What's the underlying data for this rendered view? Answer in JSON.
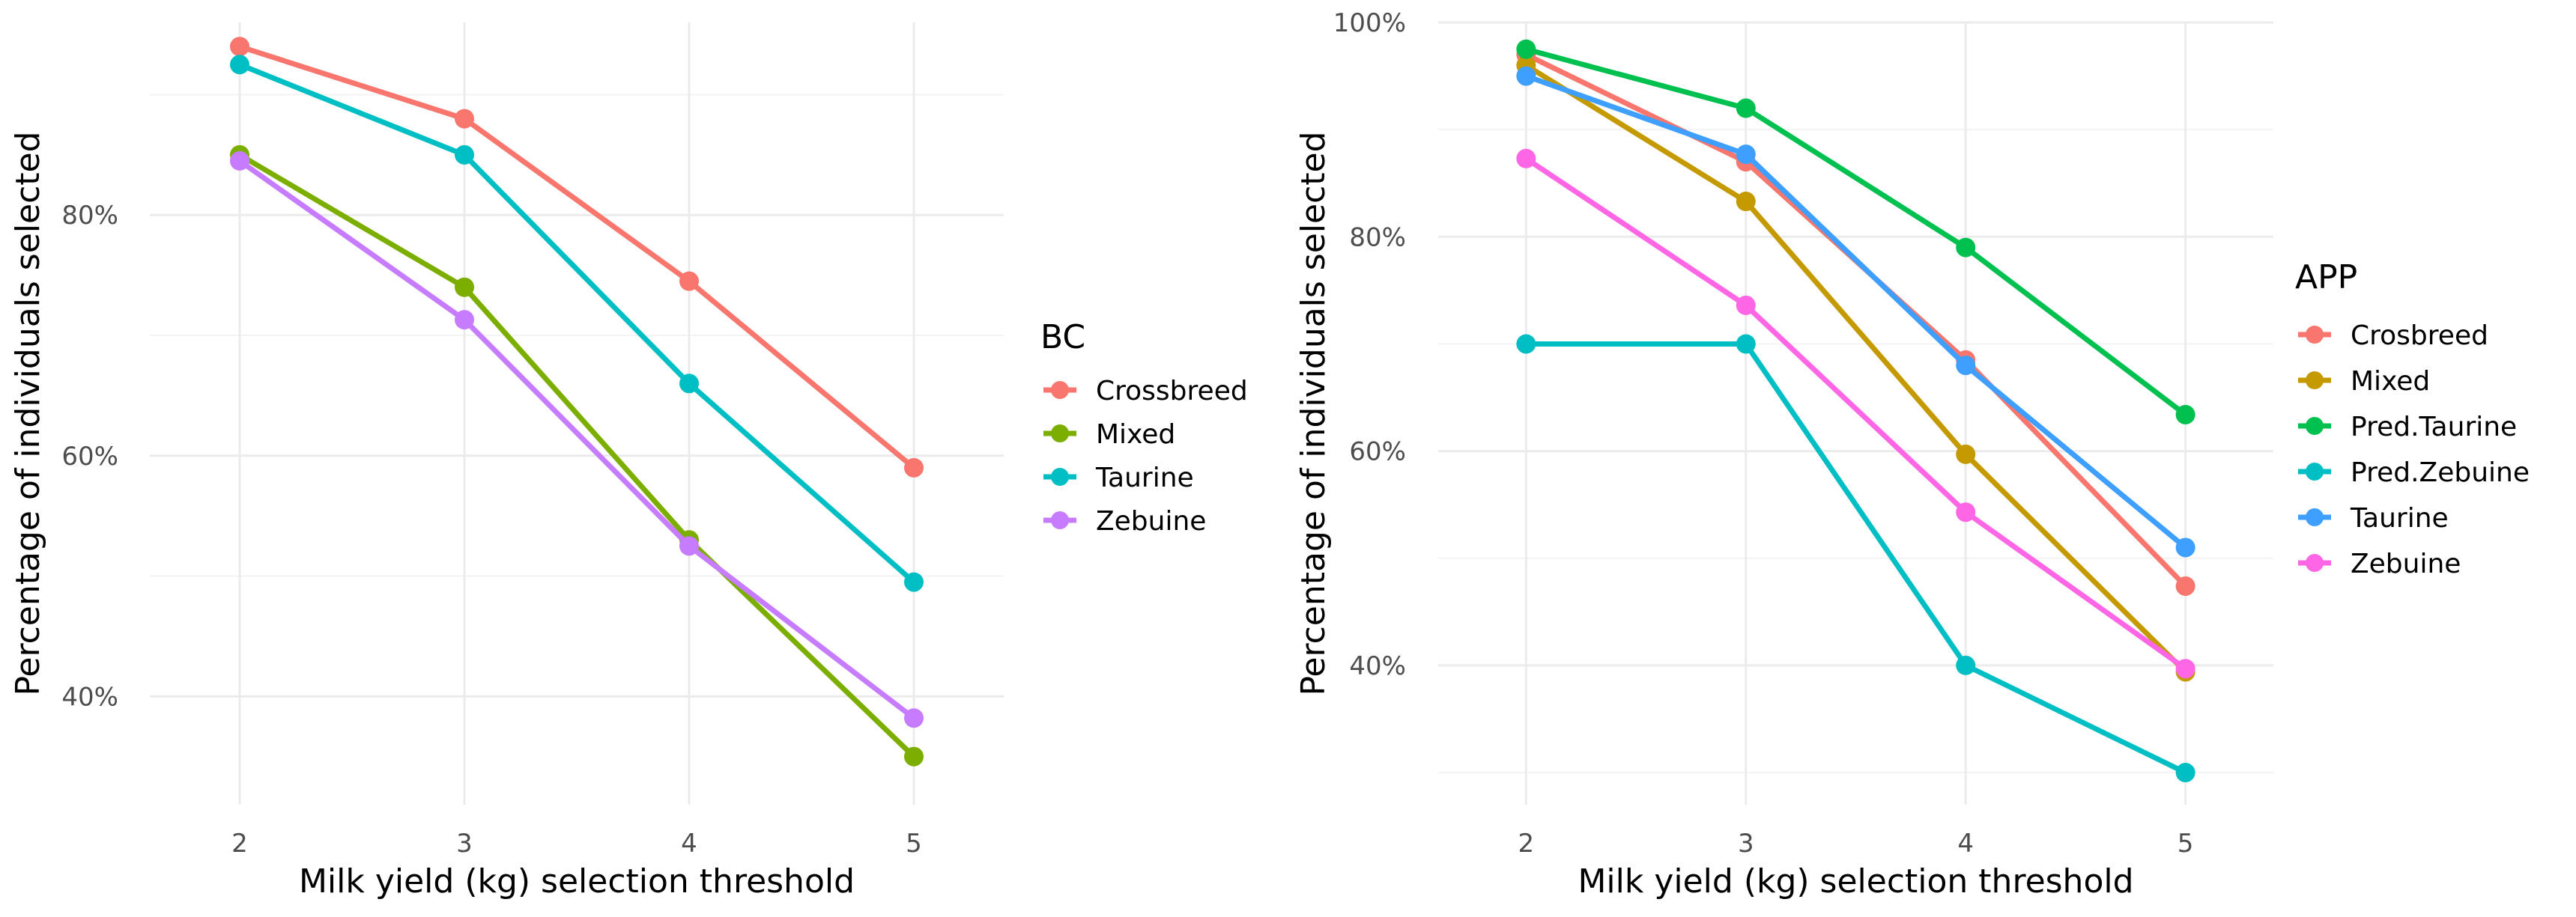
{
  "chart_data": [
    {
      "type": "line",
      "title": "",
      "xlabel": "Milk yield (kg) selection threshold",
      "ylabel": "Percentage of individuals selected",
      "x": [
        2,
        3,
        4,
        5
      ],
      "x_ticks": [
        "2",
        "3",
        "4",
        "5"
      ],
      "ylim": [
        0.31,
        0.96
      ],
      "y_ticks": [
        {
          "value": 0.4,
          "label": "40%"
        },
        {
          "value": 0.6,
          "label": "60%"
        },
        {
          "value": 0.8,
          "label": "80%"
        }
      ],
      "grid": true,
      "legend_title": "BC",
      "legend_position": "right",
      "series": [
        {
          "name": "Crossbreed",
          "color": "#F8766D",
          "values": [
            0.94,
            0.88,
            0.745,
            0.59
          ]
        },
        {
          "name": "Mixed",
          "color": "#7CAE00",
          "values": [
            0.85,
            0.74,
            0.53,
            0.35
          ]
        },
        {
          "name": "Taurine",
          "color": "#00BFC4",
          "values": [
            0.925,
            0.85,
            0.66,
            0.495
          ]
        },
        {
          "name": "Zebuine",
          "color": "#C77CFF",
          "values": [
            0.845,
            0.713,
            0.525,
            0.382
          ]
        }
      ]
    },
    {
      "type": "line",
      "title": "",
      "xlabel": "Milk yield (kg) selection threshold",
      "ylabel": "Percentage of individuals selected",
      "x": [
        2,
        3,
        4,
        5
      ],
      "x_ticks": [
        "2",
        "3",
        "4",
        "5"
      ],
      "ylim": [
        0.27,
        1.0
      ],
      "y_ticks": [
        {
          "value": 0.4,
          "label": "40%"
        },
        {
          "value": 0.6,
          "label": "60%"
        },
        {
          "value": 0.8,
          "label": "80%"
        },
        {
          "value": 1.0,
          "label": "100%"
        }
      ],
      "grid": true,
      "legend_title": "APP",
      "legend_position": "right",
      "series": [
        {
          "name": "Crosbreed",
          "color": "#F8766D",
          "values": [
            0.97,
            0.87,
            0.685,
            0.474
          ]
        },
        {
          "name": "Mixed",
          "color": "#C49A00",
          "values": [
            0.96,
            0.833,
            0.597,
            0.394
          ]
        },
        {
          "name": "Pred.Taurine",
          "color": "#00C04F",
          "values": [
            0.975,
            0.92,
            0.79,
            0.634
          ]
        },
        {
          "name": "Pred.Zebuine",
          "color": "#00BFC4",
          "values": [
            0.7,
            0.7,
            0.4,
            0.3
          ]
        },
        {
          "name": "Taurine",
          "color": "#3E9FFF",
          "values": [
            0.95,
            0.877,
            0.68,
            0.51
          ]
        },
        {
          "name": "Zebuine",
          "color": "#FF66E6",
          "values": [
            0.873,
            0.736,
            0.543,
            0.397
          ]
        }
      ]
    }
  ]
}
